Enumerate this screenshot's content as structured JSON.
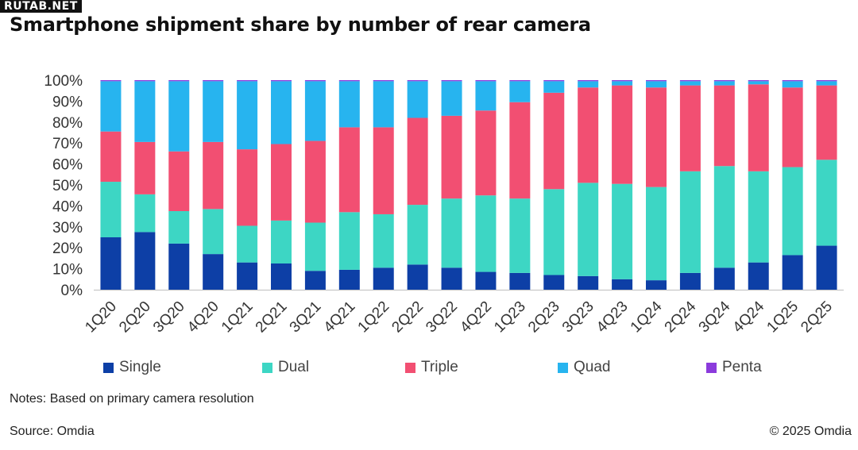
{
  "watermark": "RUTAB.NET",
  "footer": {
    "notes": "Notes: Based on primary camera resolution",
    "source": "Source: Omdia",
    "copyright": "© 2025 Omdia"
  },
  "colors": {
    "Single": "#0d3fa6",
    "Dual": "#3dd6c4",
    "Triple": "#f24f72",
    "Quad": "#27b4ef",
    "Penta": "#8b3bdc",
    "grid": "#d9d9d9",
    "axis": "#bfbfbf"
  },
  "chart_data": {
    "type": "bar",
    "stacked": true,
    "title": "Smartphone shipment share by number of rear camera",
    "ylim": [
      0,
      100
    ],
    "yticks": [
      "0%",
      "10%",
      "20%",
      "30%",
      "40%",
      "50%",
      "60%",
      "70%",
      "80%",
      "90%",
      "100%"
    ],
    "legend_position": "bottom",
    "grid": false,
    "categories": [
      "1Q20",
      "2Q20",
      "3Q20",
      "4Q20",
      "1Q21",
      "2Q21",
      "3Q21",
      "4Q21",
      "1Q22",
      "2Q22",
      "3Q22",
      "4Q22",
      "1Q23",
      "2Q23",
      "3Q23",
      "4Q23",
      "1Q24",
      "2Q24",
      "3Q24",
      "4Q24",
      "1Q25",
      "2Q25"
    ],
    "series": [
      {
        "name": "Single",
        "values": [
          25,
          27.5,
          22,
          17,
          13,
          12.5,
          9,
          9.5,
          10.5,
          12,
          10.5,
          8.5,
          8,
          7,
          6.5,
          5,
          4.5,
          8,
          10.5,
          13,
          16.5,
          21
        ]
      },
      {
        "name": "Dual",
        "values": [
          26.5,
          18,
          15.5,
          21.5,
          17.5,
          20.5,
          23,
          27.5,
          25.5,
          28.5,
          33,
          36.5,
          35.5,
          41,
          44.5,
          45.5,
          44.5,
          48.5,
          48.5,
          43.5,
          42,
          41
        ]
      },
      {
        "name": "Triple",
        "values": [
          24,
          25,
          28.5,
          32,
          36.5,
          36.5,
          39,
          40.5,
          41.5,
          41.5,
          39.5,
          40.5,
          46,
          46,
          45.5,
          47,
          47.5,
          41,
          38.5,
          41.5,
          38,
          35.5
        ]
      },
      {
        "name": "Quad",
        "values": [
          24,
          29,
          33.5,
          29,
          32.5,
          30,
          28.5,
          22,
          22,
          17.5,
          16.5,
          14,
          10,
          5.5,
          3,
          2,
          3,
          2,
          2,
          1.5,
          3,
          2
        ]
      },
      {
        "name": "Penta",
        "values": [
          0.5,
          0.5,
          0.5,
          0.5,
          0.5,
          0.5,
          0.5,
          0.5,
          0.5,
          0.5,
          0.5,
          0.5,
          0.5,
          0.5,
          0.5,
          0.5,
          0.5,
          0.5,
          0.5,
          0.5,
          0.5,
          0.5
        ]
      }
    ]
  }
}
